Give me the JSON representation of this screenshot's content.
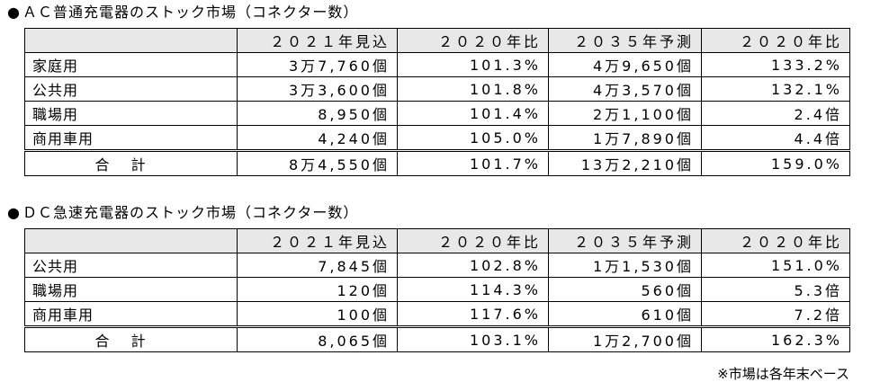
{
  "ac": {
    "bullet": "●",
    "title": "ＡＣ普通充電器のストック市場（コネクター数）",
    "headers": [
      "",
      "２０２１年見込",
      "２０２０年比",
      "２０３５年予測",
      "２０２０年比"
    ],
    "rows": [
      {
        "label": "家庭用",
        "v2021": "3万7,760個",
        "r2021": "101.3%",
        "v2035": "4万9,650個",
        "r2035": "133.2%"
      },
      {
        "label": "公共用",
        "v2021": "3万3,600個",
        "r2021": "101.8%",
        "v2035": "4万3,570個",
        "r2035": "132.1%"
      },
      {
        "label": "職場用",
        "v2021": "8,950個",
        "r2021": "101.4%",
        "v2035": "2万1,100個",
        "r2035": "2.4倍"
      },
      {
        "label": "商用車用",
        "v2021": "4,240個",
        "r2021": "105.0%",
        "v2035": "1万7,890個",
        "r2035": "4.4倍"
      }
    ],
    "total": {
      "label": "合計",
      "v2021": "8万4,550個",
      "r2021": "101.7%",
      "v2035": "13万2,210個",
      "r2035": "159.0%"
    }
  },
  "dc": {
    "bullet": "●",
    "title": "ＤＣ急速充電器のストック市場（コネクター数）",
    "headers": [
      "",
      "２０２１年見込",
      "２０２０年比",
      "２０３５年予測",
      "２０２０年比"
    ],
    "rows": [
      {
        "label": "公共用",
        "v2021": "7,845個",
        "r2021": "102.8%",
        "v2035": "1万1,530個",
        "r2035": "151.0%"
      },
      {
        "label": "職場用",
        "v2021": "120個",
        "r2021": "114.3%",
        "v2035": "560個",
        "r2035": "5.3倍"
      },
      {
        "label": "商用車用",
        "v2021": "100個",
        "r2021": "117.6%",
        "v2035": "610個",
        "r2035": "7.2倍"
      }
    ],
    "total": {
      "label": "合計",
      "v2021": "8,065個",
      "r2021": "103.1%",
      "v2035": "1万2,700個",
      "r2035": "162.3%"
    }
  },
  "footnote": "※市場は各年末ベース"
}
